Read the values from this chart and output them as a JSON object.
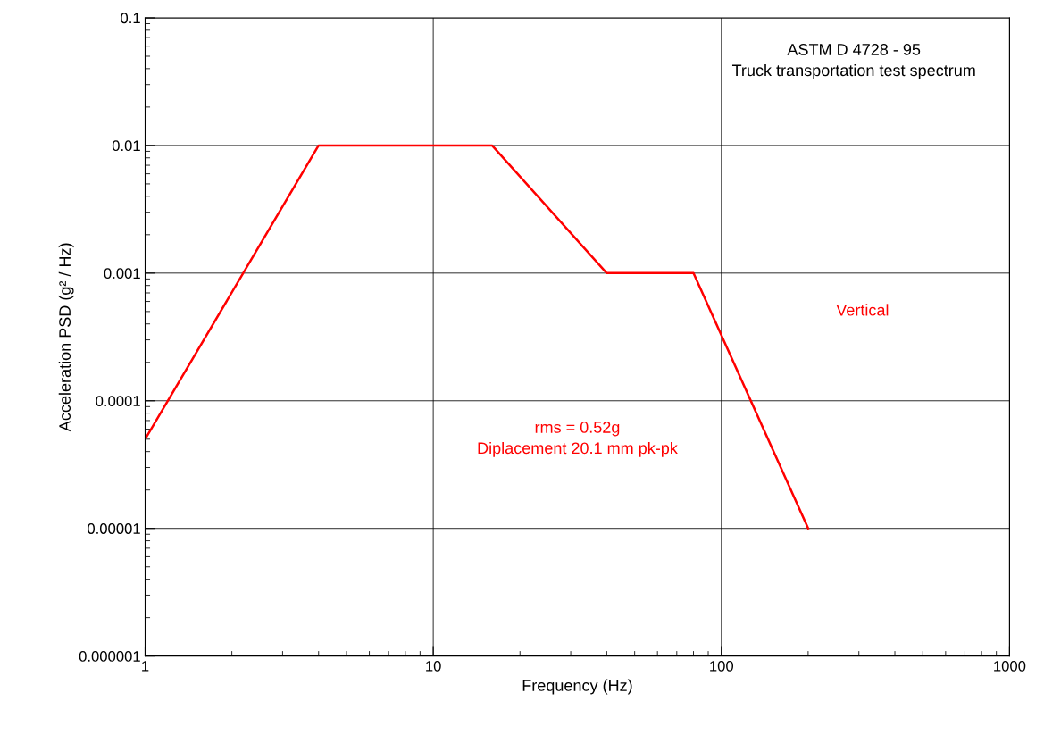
{
  "chart_data": {
    "type": "line",
    "title": "ASTM D 4728 - 95",
    "subtitle": "Truck transportation test spectrum",
    "xlabel": "Frequency (Hz)",
    "ylabel": "Acceleration PSD (g² / Hz)",
    "x": [
      1,
      4,
      16,
      40,
      80,
      200
    ],
    "series": [
      {
        "name": "Vertical",
        "color": "#ff0000",
        "values": [
          5e-05,
          0.01,
          0.01,
          0.001,
          0.001,
          1e-05
        ]
      }
    ],
    "annotations": [
      "rms = 0.52g\nDiplacement 20.1 mm pk-pk"
    ],
    "log": "xy",
    "xlim": [
      1,
      1000
    ],
    "xticks": [
      1,
      10,
      100,
      1000
    ],
    "ylim": [
      1e-06,
      0.1
    ],
    "yticks": [
      {
        "value": 1e-06,
        "label": "0.000001"
      },
      {
        "value": 1e-05,
        "label": "0.00001"
      },
      {
        "value": 0.0001,
        "label": "0.0001"
      },
      {
        "value": 0.001,
        "label": "0.001"
      },
      {
        "value": 0.01,
        "label": "0.01"
      },
      {
        "value": 0.1,
        "label": "0.1"
      }
    ],
    "grid": true,
    "marker": "none",
    "line_style": "solid"
  }
}
